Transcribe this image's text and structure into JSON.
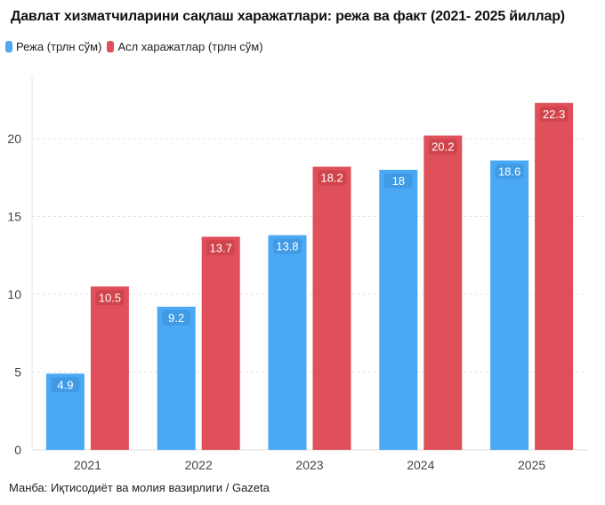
{
  "title": "Давлат хизматчиларини сақлаш харажатлари: режа ва факт (2021- 2025 йиллар)",
  "source": "Манба: Иқтисодиёт ва молия вазирлиги / Gazeta",
  "chart_data": {
    "type": "bar",
    "title": "Давлат хизматчиларини сақлаш харажатлари: режа ва факт (2021- 2025 йиллар)",
    "categories": [
      "2021",
      "2022",
      "2023",
      "2024",
      "2025"
    ],
    "series": [
      {
        "name": "Режа (трлн сўм)",
        "values": [
          4.9,
          9.2,
          13.8,
          18,
          18.6
        ],
        "color": "#4aa8f5"
      },
      {
        "name": "Асл харажатлар (трлн сўм)",
        "values": [
          10.5,
          13.7,
          18.2,
          20.2,
          22.3
        ],
        "color": "#e0505a"
      }
    ],
    "yticks": [
      0,
      5,
      10,
      15,
      20
    ],
    "ylim": [
      0,
      24
    ],
    "grid": true,
    "legend": "top-left",
    "data_labels": true
  }
}
